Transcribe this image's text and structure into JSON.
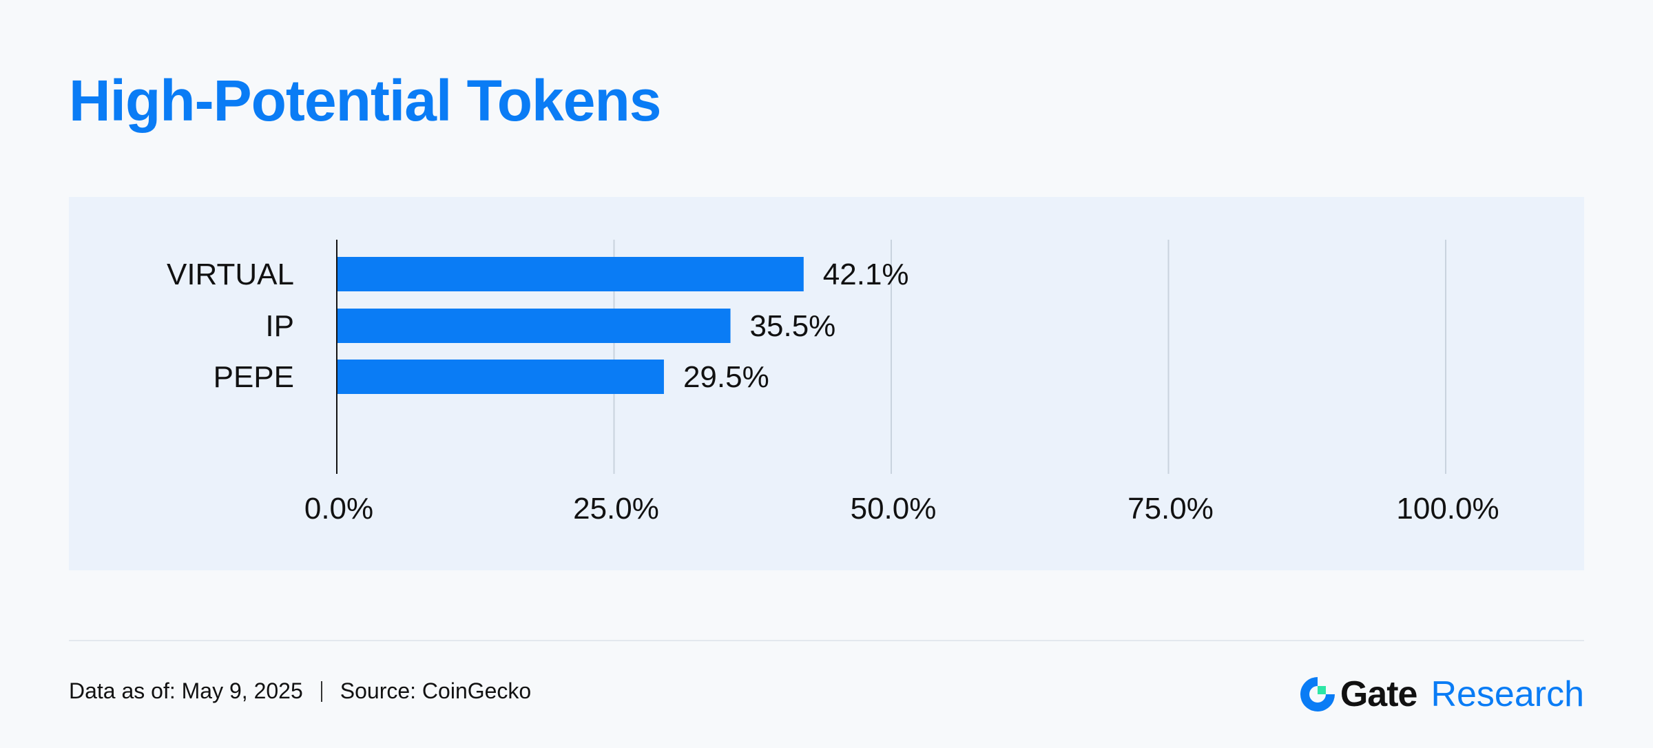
{
  "title": "High-Potential Tokens",
  "chart_data": {
    "type": "bar",
    "orientation": "horizontal",
    "title": "High-Potential Tokens",
    "categories": [
      "VIRTUAL",
      "IP",
      "PEPE"
    ],
    "values": [
      42.1,
      35.5,
      29.5
    ],
    "value_labels": [
      "42.1%",
      "35.5%",
      "29.5%"
    ],
    "xlim": [
      0,
      100
    ],
    "x_ticks": [
      0,
      25,
      50,
      75,
      100
    ],
    "x_tick_labels": [
      "0.0%",
      "25.0%",
      "50.0%",
      "75.0%",
      "100.0%"
    ],
    "xlabel": "",
    "ylabel": "",
    "grid": "vertical",
    "legend": "none",
    "bar_color": "#0a7cf5",
    "grid_color": "#c9d3de"
  },
  "footer": {
    "date_text": "Data as of: May 9, 2025",
    "source_text": "Source: CoinGecko"
  },
  "brand": {
    "logo_icon": "gate-logo-icon",
    "name": "Gate",
    "sub": "Research",
    "accent_color": "#0a7cf5",
    "logo_green": "#2ee6a6"
  }
}
